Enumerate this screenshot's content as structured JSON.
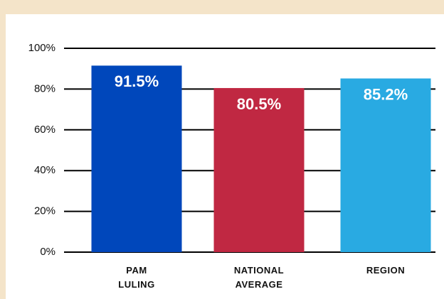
{
  "chart_data": {
    "type": "bar",
    "categories": [
      [
        "PAM",
        "LULING"
      ],
      [
        "NATIONAL",
        "AVERAGE"
      ],
      [
        "REGION"
      ]
    ],
    "values": [
      91.5,
      80.5,
      85.2
    ],
    "value_labels": [
      "91.5%",
      "80.5%",
      "85.2%"
    ],
    "colors": [
      "#0047bb",
      "#c02842",
      "#29aae2"
    ],
    "ylim": [
      0,
      100
    ],
    "yticks": [
      {
        "value": 0,
        "label": "0%"
      },
      {
        "value": 20,
        "label": "20%"
      },
      {
        "value": 40,
        "label": "40%"
      },
      {
        "value": 60,
        "label": "60%"
      },
      {
        "value": 80,
        "label": "80%"
      },
      {
        "value": 100,
        "label": "100%"
      }
    ],
    "grid": true
  }
}
